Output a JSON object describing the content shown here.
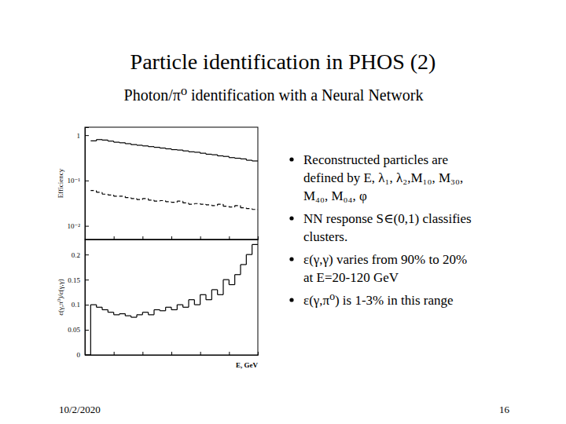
{
  "slide": {
    "title": "Particle identification in PHOS (2)",
    "subtitle": "Photon/π⁰ identification with a Neural Network",
    "bullets": [
      [
        "Reconstructed particles are",
        "defined by E, λ₁, λ₂,M₁₀, M₃₀,",
        "M₄₀, M₀₄, φ"
      ],
      [
        "NN response S∈(0,1) classifies",
        "clusters."
      ],
      [
        "ε(γ,γ) varies from 90% to 20%",
        "at E=20-120 GeV"
      ],
      [
        "ε(γ,π⁰) is 1-3% in this range"
      ]
    ],
    "date": "10/2/2020",
    "page": "16"
  },
  "chart_data": [
    {
      "type": "histogram",
      "y_label": "Efficiency",
      "bins": [
        0,
        4,
        8,
        12,
        16,
        20,
        24,
        28,
        32,
        36,
        40,
        44,
        48,
        52,
        56,
        60,
        64,
        68,
        72,
        76,
        80,
        84,
        88,
        92,
        96,
        100,
        104,
        108,
        112,
        116,
        120
      ],
      "series": [
        {
          "color": "#000000",
          "line_style": "solid",
          "values": [
            null,
            0.75,
            0.8,
            0.78,
            0.74,
            0.7,
            0.68,
            0.65,
            0.62,
            0.6,
            0.58,
            0.56,
            0.54,
            0.52,
            0.5,
            0.48,
            0.47,
            0.45,
            0.43,
            0.42,
            0.4,
            0.38,
            0.37,
            0.35,
            0.34,
            0.32,
            0.31,
            0.3,
            0.28,
            0.27
          ]
        },
        {
          "color": "#000000",
          "line_style": "dashed",
          "values": [
            null,
            0.06,
            0.055,
            0.05,
            0.048,
            0.045,
            0.045,
            0.042,
            0.04,
            0.038,
            0.04,
            0.037,
            0.035,
            0.036,
            0.034,
            0.033,
            0.035,
            0.032,
            0.03,
            0.031,
            0.03,
            0.029,
            0.028,
            0.03,
            0.027,
            0.026,
            0.028,
            0.025,
            0.024,
            0.023
          ]
        }
      ],
      "log": "y",
      "xlim": [
        0,
        120
      ],
      "xticks": [
        0,
        20,
        40,
        60,
        80,
        100,
        120
      ],
      "ylim": [
        0.005,
        1.5
      ],
      "yticks": [
        1,
        {
          "value": 0.1,
          "label": "10⁻¹"
        },
        {
          "value": 0.01,
          "label": "10⁻²"
        }
      ],
      "tick_labels": "y"
    },
    {
      "type": "histogram",
      "y_label": "ε(γ,π⁰)/ε(γ,γ)",
      "x_label": "E, GeV",
      "bins": [
        0,
        4,
        8,
        12,
        16,
        20,
        24,
        28,
        32,
        36,
        40,
        44,
        48,
        52,
        56,
        60,
        64,
        68,
        72,
        76,
        80,
        84,
        88,
        92,
        96,
        100,
        104,
        108,
        112,
        116,
        120
      ],
      "series": [
        {
          "color": "#000000",
          "line_style": "solid",
          "values": [
            0,
            0.1,
            0.095,
            0.09,
            0.085,
            0.08,
            0.082,
            0.078,
            0.075,
            0.08,
            0.085,
            0.08,
            0.09,
            0.088,
            0.095,
            0.09,
            0.1,
            0.095,
            0.11,
            0.1,
            0.12,
            0.11,
            0.13,
            0.12,
            0.15,
            0.14,
            0.16,
            0.18,
            0.2,
            0.22
          ]
        }
      ],
      "xlim": [
        0,
        120
      ],
      "xticks": [
        0,
        20,
        40,
        60,
        80,
        100,
        120
      ],
      "ylim": [
        0,
        0.23
      ],
      "yticks": [
        0,
        0.05,
        0.1,
        0.15,
        0.2
      ],
      "tick_labels": "y"
    }
  ]
}
